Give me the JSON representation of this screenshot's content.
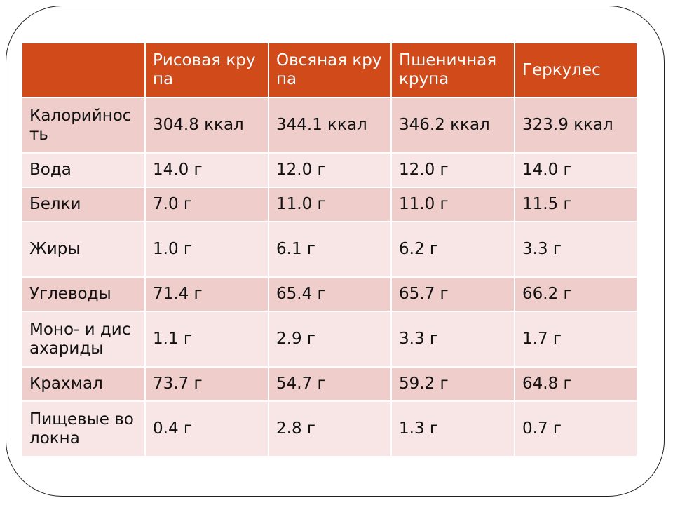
{
  "table": {
    "headers": [
      "",
      "Рисовая крупа",
      "Овсяная крупа",
      "Пшеничная крупа",
      "Геркулес"
    ],
    "rows": [
      {
        "label": "Калорийность",
        "values": [
          "304.8 ккал",
          "344.1 ккал",
          "346.2 ккал",
          "323.9 ккал"
        ]
      },
      {
        "label": "Вода",
        "values": [
          "14.0 г",
          "12.0 г",
          "12.0 г",
          "14.0 г"
        ]
      },
      {
        "label": "Белки",
        "values": [
          "7.0 г",
          "11.0 г",
          "11.0 г",
          "11.5 г"
        ]
      },
      {
        "label": "Жиры",
        "values": [
          "1.0 г",
          "6.1 г",
          "6.2 г",
          "3.3 г"
        ]
      },
      {
        "label": "Углеводы",
        "values": [
          "71.4 г",
          "65.4 г",
          "65.7 г",
          "66.2 г"
        ]
      },
      {
        "label": "Моно- и дисахариды",
        "values": [
          "1.1 г",
          "2.9 г",
          "3.3 г",
          "1.7 г"
        ]
      },
      {
        "label": "Крахмал",
        "values": [
          "73.7 г",
          "54.7 г",
          "59.2 г",
          "64.8 г"
        ]
      },
      {
        "label": "Пищевые волокна",
        "values": [
          "0.4 г",
          "2.8 г",
          "1.3 г",
          "0.7 г"
        ]
      }
    ]
  },
  "colors": {
    "header_bg": "#d04a1a",
    "row_dark": "#efcdcb",
    "row_light": "#f7e6e5"
  }
}
